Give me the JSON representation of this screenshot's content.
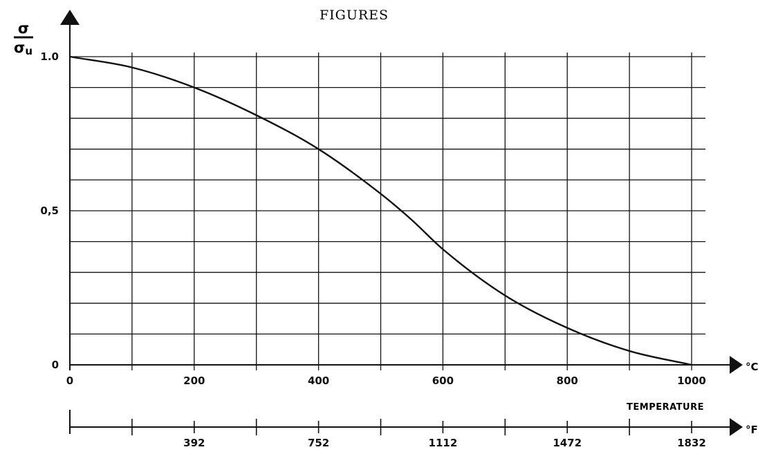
{
  "page_heading": "FIGURES",
  "chart_data": {
    "type": "line",
    "title": "",
    "ylabel": {
      "symbol": "σ",
      "denominator": "σ",
      "denominator_subscript": "u"
    },
    "xlabel": "TEMPERATURE",
    "x_unit": "°C",
    "x_secondary_unit": "°F",
    "xlim": [
      0,
      1000
    ],
    "ylim": [
      0,
      1
    ],
    "grid": true,
    "x_ticks": [
      0,
      200,
      400,
      600,
      800,
      1000
    ],
    "x_tick_labels": [
      "0",
      "200",
      "400",
      "600",
      "800",
      "1000"
    ],
    "x_secondary_ticks": [
      392,
      752,
      1112,
      1472,
      1832
    ],
    "x_secondary_tick_labels": [
      "392",
      "752",
      "1112",
      "1472",
      "1832"
    ],
    "y_ticks": [
      0,
      0.5,
      1.0
    ],
    "y_tick_labels": [
      "0",
      "0,5",
      "1.0"
    ],
    "series": [
      {
        "x": [
          0,
          100,
          200,
          300,
          400,
          500,
          550,
          600,
          700,
          800,
          900,
          1000
        ],
        "values": [
          1.0,
          0.965,
          0.9,
          0.81,
          0.7,
          0.555,
          0.47,
          0.375,
          0.225,
          0.12,
          0.045,
          0.0
        ],
        "color": "#111111"
      }
    ]
  }
}
